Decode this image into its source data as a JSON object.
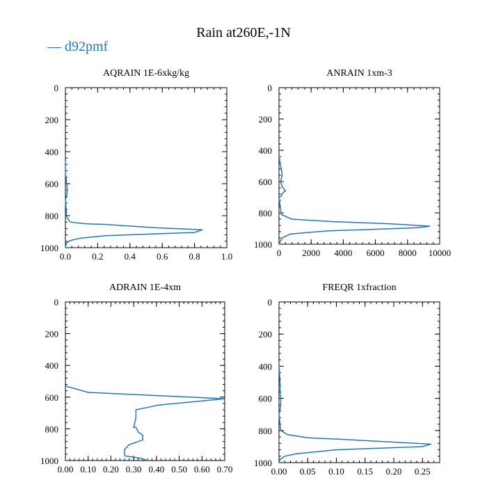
{
  "figure": {
    "title": "Rain at260E,-1N",
    "legend_label": "d92pmf",
    "line_color": "#1f77b4"
  },
  "chart_data": [
    {
      "type": "line",
      "title": "AQRAIN  1E-6xkg/kg",
      "xlim": [
        0,
        1.0
      ],
      "ylim": [
        1000,
        0
      ],
      "xticks": [
        "0.0",
        "0.2",
        "0.4",
        "0.6",
        "0.8",
        "1.0"
      ],
      "xtick_values": [
        0,
        0.2,
        0.4,
        0.6,
        0.8,
        1.0
      ],
      "yticks": [
        "0",
        "200",
        "400",
        "600",
        "800",
        "1000"
      ],
      "ytick_values": [
        0,
        200,
        400,
        600,
        800,
        1000
      ],
      "series": [
        {
          "x": [
            0,
            0,
            0,
            0.004,
            0.008,
            0.012,
            0.008,
            0.004,
            0,
            0.008,
            0.03,
            0.12,
            0.25,
            0.55,
            0.85,
            0.8,
            0.25,
            0.1,
            0.05,
            0.02,
            0.005,
            0
          ],
          "y": [
            420,
            500,
            540,
            560,
            600,
            640,
            670,
            690,
            700,
            810,
            840,
            850,
            855,
            875,
            888,
            905,
            925,
            940,
            950,
            960,
            975,
            1000
          ]
        }
      ]
    },
    {
      "type": "line",
      "title": "ANRAIN  1xm-3",
      "xlim": [
        0,
        10000
      ],
      "ylim": [
        1000,
        0
      ],
      "xticks": [
        "0",
        "2000",
        "4000",
        "6000",
        "8000",
        "10000"
      ],
      "xtick_values": [
        0,
        2000,
        4000,
        6000,
        8000,
        10000
      ],
      "yticks": [
        "0",
        "200",
        "400",
        "600",
        "800",
        "1000"
      ],
      "ytick_values": [
        0,
        200,
        400,
        600,
        800,
        1000
      ],
      "series": [
        {
          "x": [
            0,
            50,
            150,
            200,
            120,
            100,
            150,
            250,
            400,
            250,
            150,
            50,
            0,
            150,
            800,
            3200,
            7000,
            9400,
            8600,
            3000,
            700,
            200,
            0
          ],
          "y": [
            420,
            480,
            520,
            560,
            590,
            600,
            620,
            640,
            660,
            670,
            690,
            700,
            705,
            810,
            840,
            855,
            870,
            885,
            895,
            915,
            935,
            960,
            1000
          ]
        }
      ]
    },
    {
      "type": "line",
      "title": "ADRAIN  1E-4xm",
      "xlim": [
        0,
        0.7
      ],
      "ylim": [
        1000,
        0
      ],
      "xticks": [
        "0.00",
        "0.10",
        "0.20",
        "0.30",
        "0.40",
        "0.50",
        "0.60",
        "0.70"
      ],
      "xtick_values": [
        0,
        0.1,
        0.2,
        0.3,
        0.4,
        0.5,
        0.6,
        0.7
      ],
      "yticks": [
        "0",
        "200",
        "400",
        "600",
        "800",
        "1000"
      ],
      "ytick_values": [
        0,
        200,
        400,
        600,
        800,
        1000
      ],
      "series": [
        {
          "x": [
            0,
            0.1,
            0.7,
            0.41,
            0.31,
            0.31,
            0.3,
            0.31,
            0.32,
            0.34,
            0.34,
            0.28,
            0.26,
            0.26,
            0.33,
            0.36
          ],
          "y": [
            530,
            570,
            610,
            650,
            680,
            730,
            790,
            790,
            820,
            840,
            870,
            900,
            930,
            970,
            985,
            1000
          ]
        }
      ]
    },
    {
      "type": "line",
      "title": "FREQR  1xfraction",
      "xlim": [
        0,
        0.28
      ],
      "ylim": [
        1000,
        0
      ],
      "xticks": [
        "0.00",
        "0.05",
        "0.10",
        "0.15",
        "0.20",
        "0.25"
      ],
      "xtick_values": [
        0,
        0.05,
        0.1,
        0.15,
        0.2,
        0.25
      ],
      "yticks": [
        "0",
        "200",
        "400",
        "600",
        "800",
        "1000"
      ],
      "ytick_values": [
        0,
        200,
        400,
        600,
        800,
        1000
      ],
      "series": [
        {
          "x": [
            0,
            0.001,
            0.002,
            0.002,
            0.003,
            0.003,
            0.002,
            0,
            0.003,
            0.015,
            0.05,
            0.11,
            0.265,
            0.25,
            0.1,
            0.03,
            0.01,
            0.002,
            0
          ],
          "y": [
            380,
            450,
            520,
            560,
            600,
            640,
            670,
            700,
            800,
            825,
            845,
            855,
            885,
            900,
            920,
            945,
            960,
            980,
            1000
          ]
        }
      ]
    }
  ]
}
